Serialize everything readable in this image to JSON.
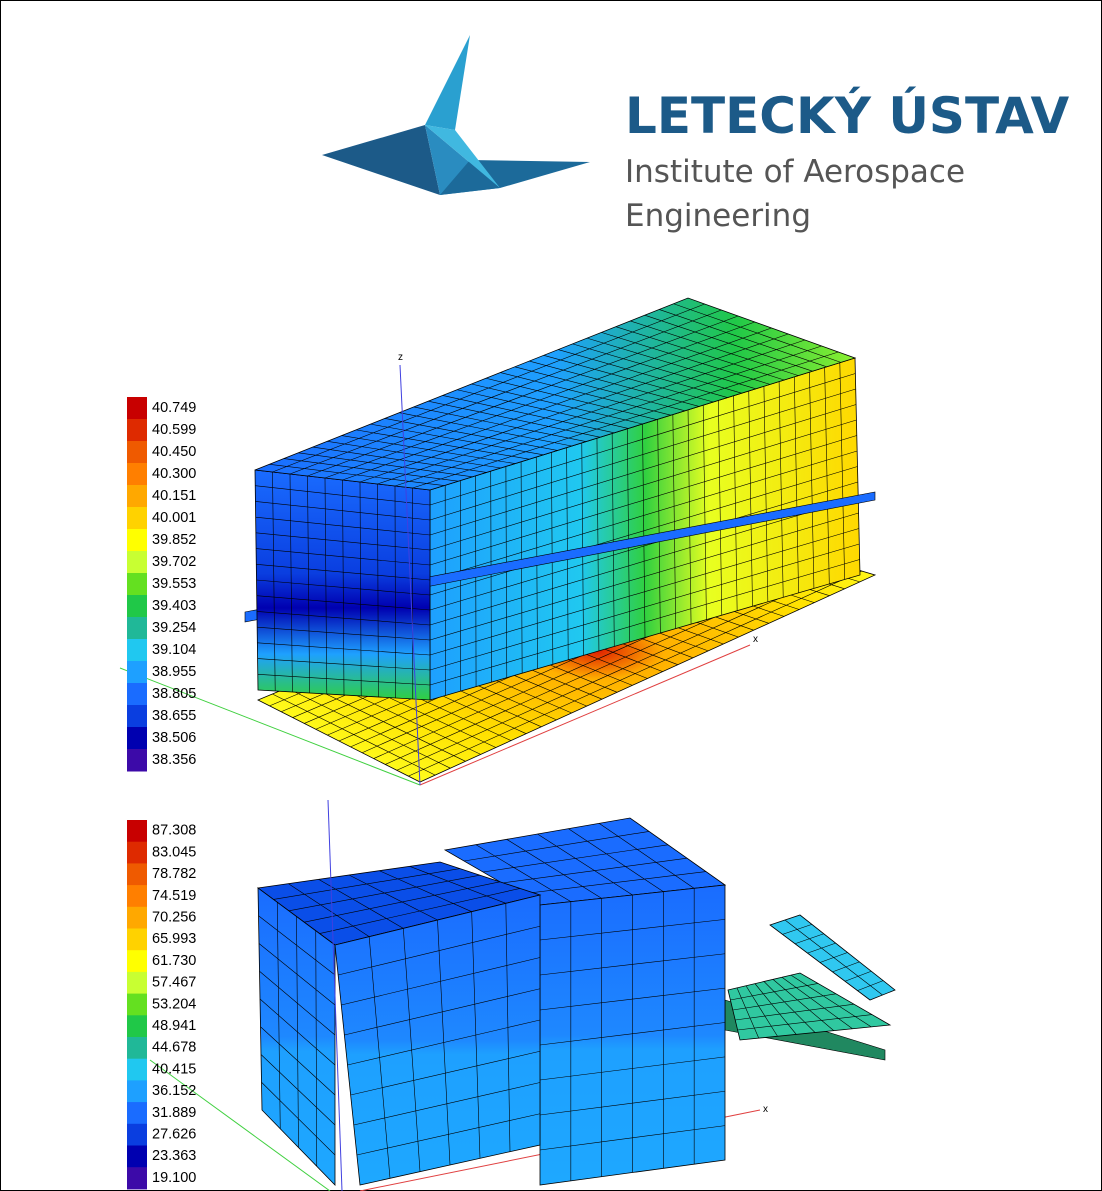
{
  "header": {
    "title": "LETECKÝ ÚSTAV",
    "subtitle_lines": [
      "Institute of Aerospace",
      "Engineering"
    ]
  },
  "plot_top": {
    "axis_labels": [
      "z",
      "x"
    ],
    "colorbar": {
      "labels": [
        "40.749",
        "40.599",
        "40.450",
        "40.300",
        "40.151",
        "40.001",
        "39.852",
        "39.702",
        "39.553",
        "39.403",
        "39.254",
        "39.104",
        "38.955",
        "38.805",
        "38.655",
        "38.506",
        "38.356"
      ],
      "colors": [
        "#c80000",
        "#de2a00",
        "#ef5a00",
        "#ff7f00",
        "#ffa800",
        "#ffd200",
        "#ffff00",
        "#c8ff32",
        "#64e020",
        "#20c848",
        "#20b898",
        "#20c8f0",
        "#1ea0ff",
        "#1a6cff",
        "#0a3ee0",
        "#0000b0",
        "#3c0aa8"
      ]
    }
  },
  "plot_bottom": {
    "axis_labels": [
      "x"
    ],
    "colorbar": {
      "labels": [
        "87.308",
        "83.045",
        "78.782",
        "74.519",
        "70.256",
        "65.993",
        "61.730",
        "57.467",
        "53.204",
        "48.941",
        "44.678",
        "40.415",
        "36.152",
        "31.889",
        "27.626",
        "23.363",
        "19.100"
      ],
      "colors": [
        "#c80000",
        "#de2a00",
        "#ef5a00",
        "#ff7f00",
        "#ffa800",
        "#ffd200",
        "#ffff00",
        "#c8ff32",
        "#64e020",
        "#20c848",
        "#20b898",
        "#20c8f0",
        "#1ea0ff",
        "#1a6cff",
        "#0a3ee0",
        "#0000b0",
        "#3c0aa8"
      ]
    }
  }
}
